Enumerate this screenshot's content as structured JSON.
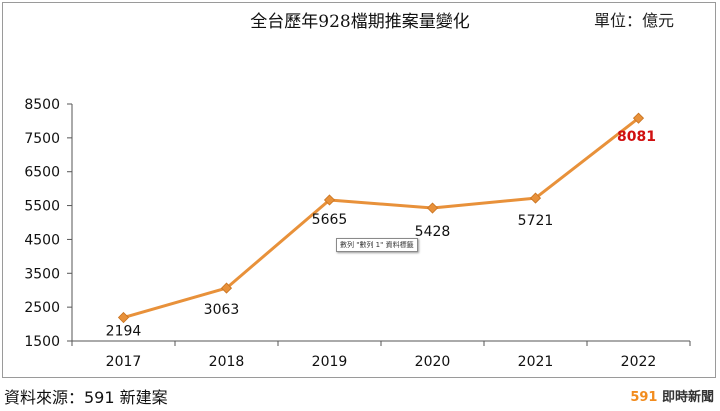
{
  "header": {
    "title": "全台歷年928檔期推案量變化",
    "unit": "單位：億元"
  },
  "footer": {
    "source": "資料來源：591 新建案",
    "brand_number": "591",
    "brand_text": "即時新聞"
  },
  "tooltip": "數列 \"數列 1\" 資料標籤",
  "colors": {
    "line": "#e8913a",
    "marker": "#e8913a",
    "highlight_label": "#d01010",
    "label": "#111111"
  },
  "chart_data": {
    "type": "line",
    "title": "全台歷年928檔期推案量變化",
    "xlabel": "",
    "ylabel": "",
    "categories": [
      "2017",
      "2018",
      "2019",
      "2020",
      "2021",
      "2022"
    ],
    "series": [
      {
        "values": [
          2194,
          3063,
          5665,
          5428,
          5721,
          8081
        ],
        "data_labels": [
          "2194",
          "3063",
          "5665",
          "5428",
          "5721",
          "8081"
        ]
      }
    ],
    "ylim": [
      1500,
      8500
    ],
    "yticks": [
      "1500",
      "2500",
      "3500",
      "4500",
      "5500",
      "6500",
      "7500",
      "8500"
    ],
    "grid": false,
    "legend": "none",
    "marker": "diamond"
  }
}
